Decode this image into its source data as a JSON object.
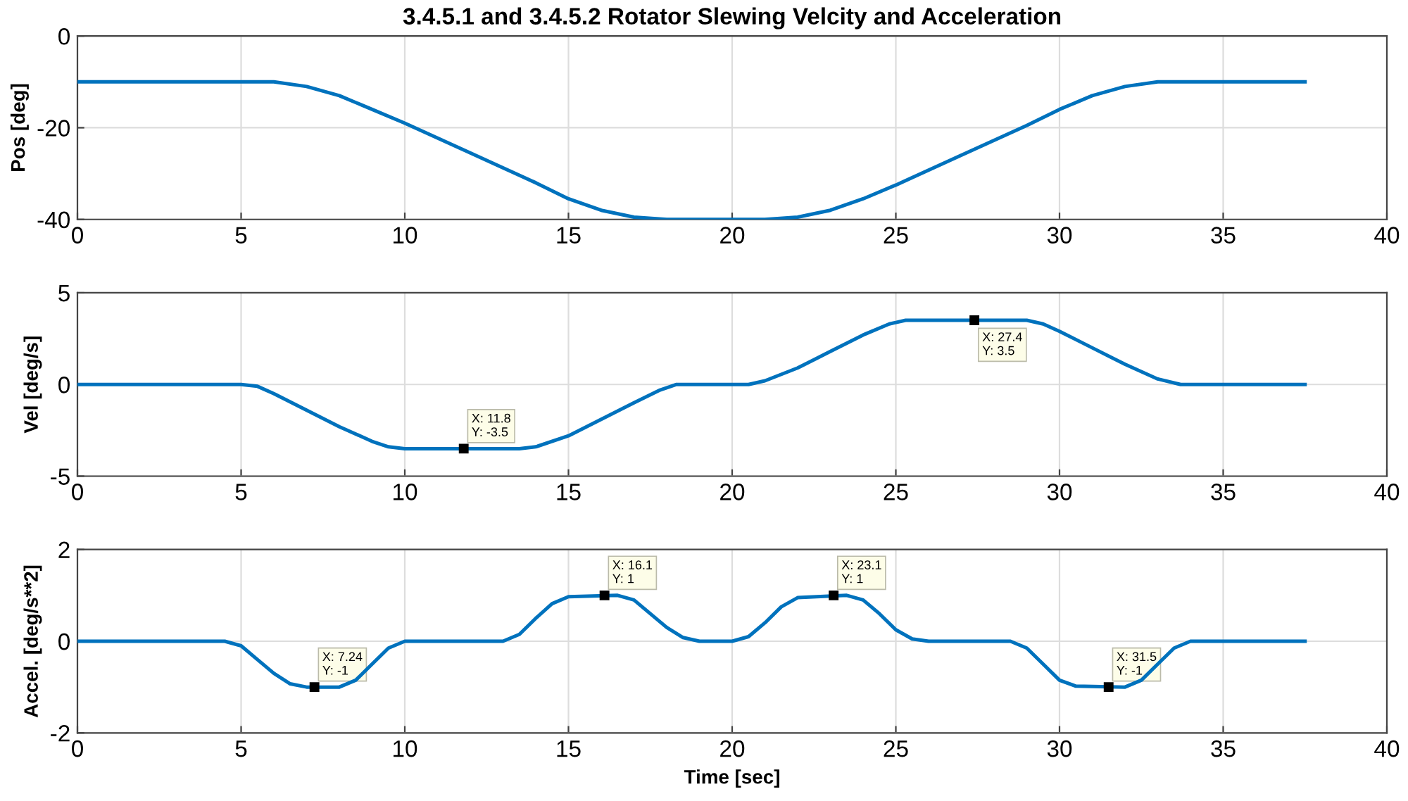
{
  "chart_data": [
    {
      "type": "line",
      "title": "3.4.5.1 and 3.4.5.2 Rotator Slewing Velcity and Acceleration",
      "ylabel": "Pos [deg]",
      "xlim": [
        0,
        40
      ],
      "xticks": [
        0,
        5,
        10,
        15,
        20,
        25,
        30,
        35,
        40
      ],
      "ylim": [
        -40,
        0
      ],
      "yticks": [
        -40,
        -20,
        0
      ],
      "grid": true,
      "series": [
        {
          "color": "#0072bd",
          "x": [
            0,
            5,
            6,
            7,
            8,
            9,
            10,
            12,
            14,
            15,
            16,
            17,
            18,
            20,
            21,
            22,
            23,
            24,
            25,
            27,
            29,
            30,
            31,
            32,
            33,
            35,
            37.5
          ],
          "values": [
            -10,
            -10,
            -10,
            -11,
            -13,
            -16,
            -19,
            -25.5,
            -32,
            -35.5,
            -38,
            -39.5,
            -40,
            -40,
            -40,
            -39.5,
            -38,
            -35.5,
            -32.5,
            -26,
            -19.5,
            -16,
            -13,
            -11,
            -10,
            -10,
            -10
          ]
        }
      ]
    },
    {
      "type": "line",
      "ylabel": "Vel [deg/s]",
      "xlim": [
        0,
        40
      ],
      "xticks": [
        0,
        5,
        10,
        15,
        20,
        25,
        30,
        35,
        40
      ],
      "ylim": [
        -5,
        5
      ],
      "yticks": [
        -5,
        0,
        5
      ],
      "grid": true,
      "series": [
        {
          "color": "#0072bd",
          "x": [
            0,
            5,
            5.5,
            6,
            7,
            8,
            9,
            9.5,
            10,
            13.5,
            14,
            15,
            16,
            17,
            17.8,
            18.3,
            20.5,
            21,
            22,
            23,
            24,
            24.8,
            25.3,
            29,
            29.5,
            30,
            31,
            32,
            33,
            33.7,
            37.5
          ],
          "values": [
            0,
            0,
            -0.1,
            -0.5,
            -1.4,
            -2.3,
            -3.1,
            -3.4,
            -3.5,
            -3.5,
            -3.4,
            -2.8,
            -1.9,
            -1.0,
            -0.3,
            0,
            0,
            0.2,
            0.9,
            1.8,
            2.7,
            3.3,
            3.5,
            3.5,
            3.3,
            2.9,
            2.0,
            1.1,
            0.3,
            0,
            0
          ]
        }
      ],
      "annotations": [
        {
          "text": "X: 11.8\nY: -3.5",
          "x": 11.8,
          "y": -3.5
        },
        {
          "text": "X: 27.4\nY: 3.5",
          "x": 27.4,
          "y": 3.5
        }
      ]
    },
    {
      "type": "line",
      "ylabel": "Accel. [deg/s**2]",
      "xlabel": "Time [sec]",
      "xlim": [
        0,
        40
      ],
      "xticks": [
        0,
        5,
        10,
        15,
        20,
        25,
        30,
        35,
        40
      ],
      "ylim": [
        -2,
        2
      ],
      "yticks": [
        -2,
        0,
        2
      ],
      "grid": true,
      "series": [
        {
          "color": "#0072bd",
          "x": [
            0,
            4.5,
            5,
            5.5,
            6,
            6.5,
            7,
            8,
            8.5,
            9,
            9.5,
            10,
            13,
            13.5,
            14,
            14.5,
            15,
            16.5,
            17,
            17.5,
            18,
            18.5,
            19,
            20,
            20.5,
            21,
            21.5,
            22,
            23.5,
            24,
            24.5,
            25,
            25.5,
            26,
            28.5,
            29,
            29.5,
            30,
            30.5,
            32,
            32.5,
            33,
            33.5,
            34,
            37.5
          ],
          "values": [
            0,
            0,
            -0.1,
            -0.4,
            -0.7,
            -0.93,
            -1,
            -1,
            -0.85,
            -0.5,
            -0.15,
            0,
            0,
            0.15,
            0.5,
            0.82,
            0.97,
            1,
            0.9,
            0.6,
            0.3,
            0.08,
            0,
            0,
            0.1,
            0.4,
            0.75,
            0.95,
            1,
            0.9,
            0.6,
            0.25,
            0.05,
            0,
            0,
            -0.15,
            -0.5,
            -0.85,
            -0.98,
            -1,
            -0.85,
            -0.5,
            -0.15,
            0,
            0
          ]
        }
      ],
      "annotations": [
        {
          "text": "X: 7.24\nY: -1",
          "x": 7.24,
          "y": -1
        },
        {
          "text": "X: 16.1\nY: 1",
          "x": 16.1,
          "y": 1
        },
        {
          "text": "X: 23.1\nY: 1",
          "x": 23.1,
          "y": 1
        },
        {
          "text": "X: 31.5\nY: -1",
          "x": 31.5,
          "y": -1
        }
      ]
    }
  ]
}
